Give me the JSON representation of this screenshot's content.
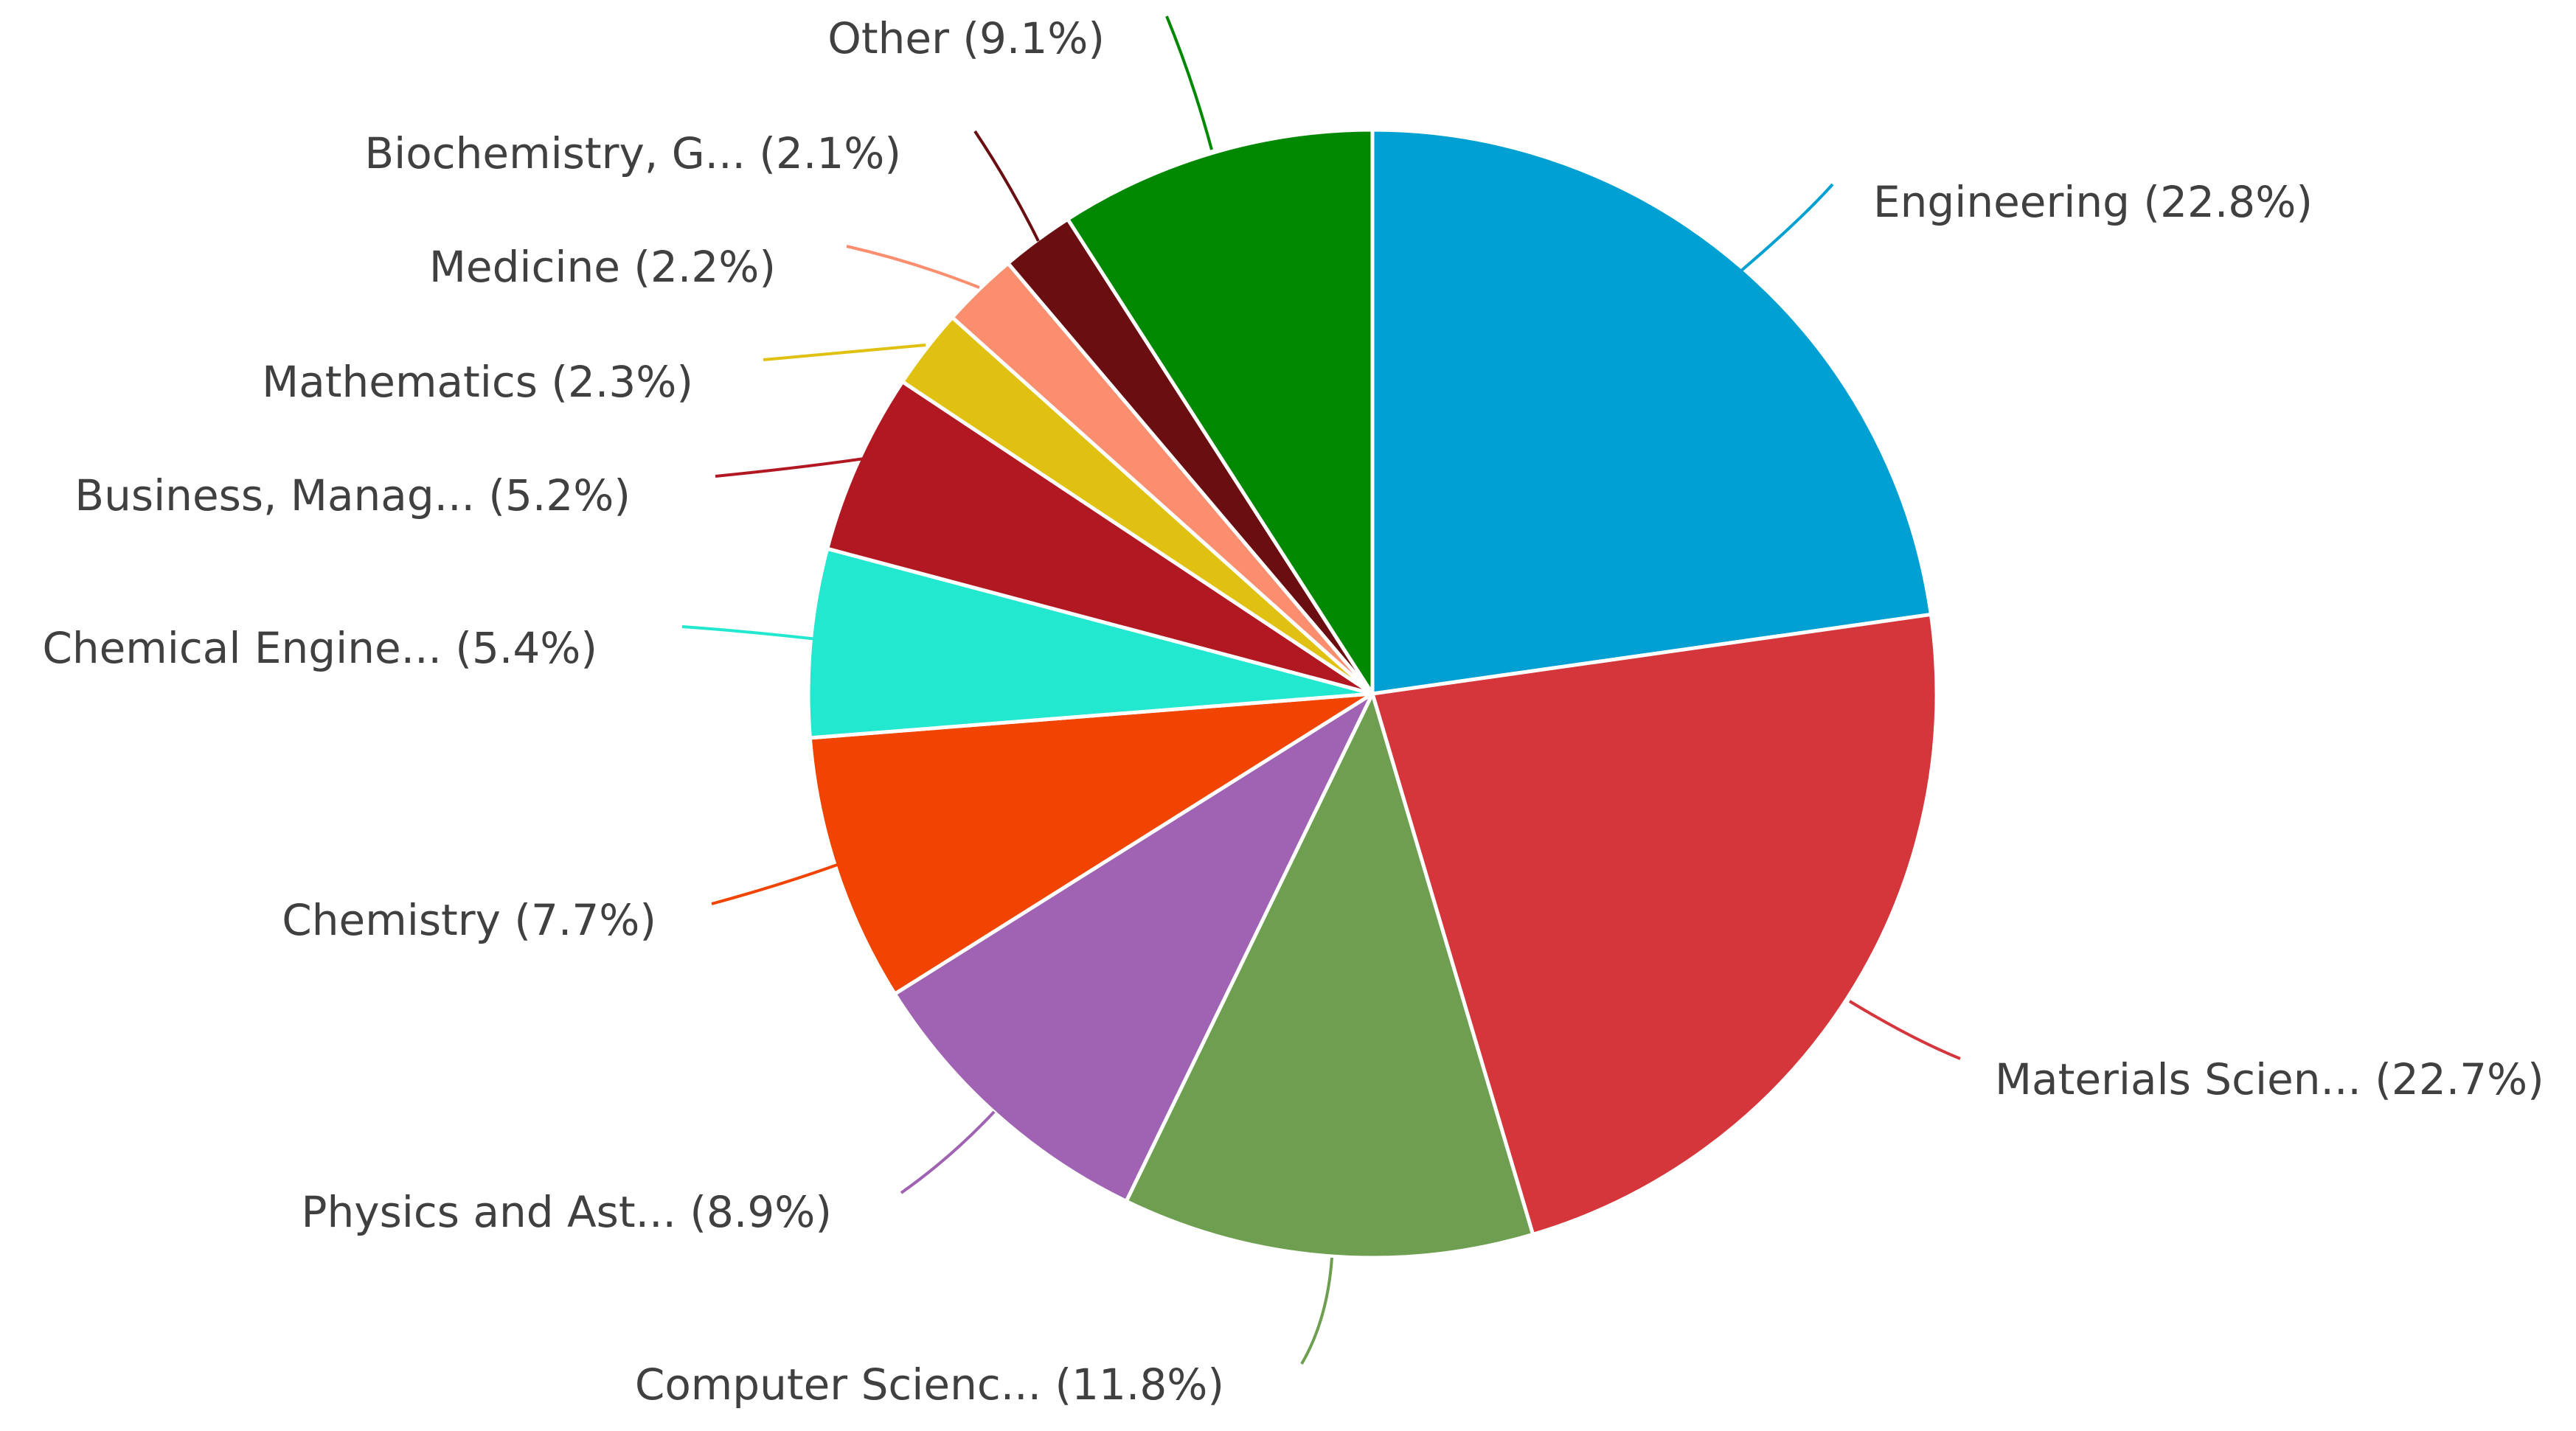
{
  "chart_data": {
    "type": "pie",
    "title": "",
    "start_angle_deg": 0,
    "direction": "clockwise",
    "label_format": "{name} ({value}%)",
    "slices": [
      {
        "name": "Engineering",
        "value": 22.8,
        "color": "#00A0D2",
        "label": "Engineering (22.8%)"
      },
      {
        "name": "Materials Scien...",
        "value": 22.7,
        "color": "#D5363B",
        "label": "Materials Scien... (22.7%)"
      },
      {
        "name": "Computer Scienc...",
        "value": 11.8,
        "color": "#6E9E4F",
        "label": "Computer Scienc... (11.8%)"
      },
      {
        "name": "Physics and Ast...",
        "value": 8.9,
        "color": "#A062B2",
        "label": "Physics and Ast... (8.9%)"
      },
      {
        "name": "Chemistry",
        "value": 7.7,
        "color": "#F04400",
        "label": "Chemistry (7.7%)"
      },
      {
        "name": "Chemical Engine...",
        "value": 5.4,
        "color": "#21E8CF",
        "label": "Chemical Engine... (5.4%)"
      },
      {
        "name": "Business, Manag...",
        "value": 5.2,
        "color": "#B21822",
        "label": "Business, Manag... (5.2%)"
      },
      {
        "name": "Mathematics",
        "value": 2.3,
        "color": "#E0C010",
        "label": "Mathematics (2.3%)"
      },
      {
        "name": "Medicine",
        "value": 2.2,
        "color": "#FA8E6E",
        "label": "Medicine (2.2%)"
      },
      {
        "name": "Biochemistry, G...",
        "value": 2.1,
        "color": "#6A0E12",
        "label": "Biochemistry, G... (2.1%)"
      },
      {
        "name": "Other",
        "value": 9.1,
        "color": "#008800",
        "label": "Other (9.1%)"
      }
    ]
  }
}
